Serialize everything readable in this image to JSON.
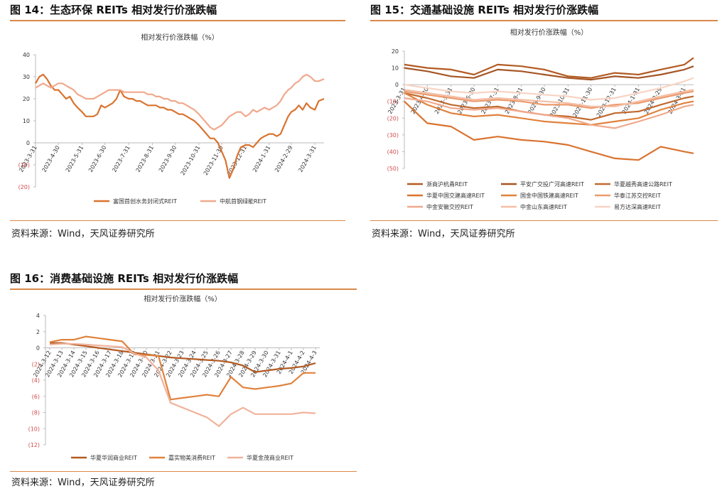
{
  "charts": [
    {
      "heading": "图 14：生态环保 REITs 相对发行价涨跌幅",
      "source": "资料来源：Wind，天风证券研究所",
      "chart_data": {
        "type": "line",
        "title": "相对发行价涨跌幅（%）",
        "ylim": [
          -20,
          40
        ],
        "yticks": [
          -20,
          -10,
          0,
          10,
          20,
          30,
          40
        ],
        "ytick_labels": [
          "(20)",
          "(10)",
          "0",
          "10",
          "20",
          "30",
          "40"
        ],
        "xlim": [
          "2023-03-31",
          "2024-04-12"
        ],
        "xticks": [
          "2023-3-31",
          "2023-4-30",
          "2023-5-31",
          "2023-6-30",
          "2023-7-31",
          "2023-8-31",
          "2023-9-30",
          "2023-10-31",
          "2023-11-30",
          "2023-12-31",
          "2024-1-31",
          "2024-2-29",
          "2024-3-31"
        ],
        "legend_position": "bottom",
        "series": [
          {
            "name": "富国首创水务封闭式REIT",
            "color": "#d9732f",
            "x": [
              "2023-03-31",
              "2023-04-05",
              "2023-04-10",
              "2023-04-15",
              "2023-04-20",
              "2023-04-25",
              "2023-04-30",
              "2023-05-05",
              "2023-05-10",
              "2023-05-15",
              "2023-05-20",
              "2023-05-25",
              "2023-05-31",
              "2023-06-05",
              "2023-06-10",
              "2023-06-15",
              "2023-06-20",
              "2023-06-25",
              "2023-06-30",
              "2023-07-05",
              "2023-07-10",
              "2023-07-15",
              "2023-07-20",
              "2023-07-25",
              "2023-07-31",
              "2023-08-05",
              "2023-08-10",
              "2023-08-15",
              "2023-08-20",
              "2023-08-25",
              "2023-08-31",
              "2023-09-05",
              "2023-09-10",
              "2023-09-15",
              "2023-09-20",
              "2023-09-25",
              "2023-09-30",
              "2023-10-05",
              "2023-10-10",
              "2023-10-15",
              "2023-10-20",
              "2023-10-25",
              "2023-10-31",
              "2023-11-05",
              "2023-11-10",
              "2023-11-15",
              "2023-11-20",
              "2023-11-25",
              "2023-11-30",
              "2023-12-05",
              "2023-12-10",
              "2023-12-15",
              "2023-12-20",
              "2023-12-25",
              "2023-12-31",
              "2024-01-05",
              "2024-01-10",
              "2024-01-15",
              "2024-01-20",
              "2024-01-25",
              "2024-01-31",
              "2024-02-05",
              "2024-02-10",
              "2024-02-15",
              "2024-02-20",
              "2024-02-25",
              "2024-02-29",
              "2024-03-05",
              "2024-03-10",
              "2024-03-15",
              "2024-03-20",
              "2024-03-25",
              "2024-03-31",
              "2024-04-05",
              "2024-04-12"
            ],
            "values": [
              27,
              30,
              31,
              29,
              26,
              24,
              24,
              22,
              20,
              21,
              18,
              16,
              14,
              12,
              12,
              12,
              13,
              17,
              16,
              17,
              18,
              20,
              24,
              21,
              20,
              20,
              19,
              19,
              18,
              17,
              17,
              17,
              16,
              16,
              15,
              15,
              14,
              13,
              13,
              12,
              11,
              10,
              8,
              6,
              4,
              2,
              2,
              0,
              -4,
              -8,
              -16,
              -12,
              -6,
              -2,
              -1,
              -1,
              -2,
              0,
              2,
              3,
              4,
              4,
              3,
              4,
              8,
              12,
              14,
              15,
              17,
              15,
              18,
              16,
              15,
              19,
              20
            ]
          },
          {
            "name": "中航首钢绿能REIT",
            "color": "#f0a98c",
            "x": [
              "2023-03-31",
              "2023-04-05",
              "2023-04-10",
              "2023-04-15",
              "2023-04-20",
              "2023-04-25",
              "2023-04-30",
              "2023-05-05",
              "2023-05-10",
              "2023-05-15",
              "2023-05-20",
              "2023-05-25",
              "2023-05-31",
              "2023-06-05",
              "2023-06-10",
              "2023-06-15",
              "2023-06-20",
              "2023-06-25",
              "2023-06-30",
              "2023-07-05",
              "2023-07-10",
              "2023-07-15",
              "2023-07-20",
              "2023-07-25",
              "2023-07-31",
              "2023-08-05",
              "2023-08-10",
              "2023-08-15",
              "2023-08-20",
              "2023-08-25",
              "2023-08-31",
              "2023-09-05",
              "2023-09-10",
              "2023-09-15",
              "2023-09-20",
              "2023-09-25",
              "2023-09-30",
              "2023-10-05",
              "2023-10-10",
              "2023-10-15",
              "2023-10-20",
              "2023-10-25",
              "2023-10-31",
              "2023-11-05",
              "2023-11-10",
              "2023-11-15",
              "2023-11-20",
              "2023-11-25",
              "2023-11-30",
              "2023-12-05",
              "2023-12-10",
              "2023-12-15",
              "2023-12-20",
              "2023-12-25",
              "2023-12-31",
              "2024-01-05",
              "2024-01-10",
              "2024-01-15",
              "2024-01-20",
              "2024-01-25",
              "2024-01-31",
              "2024-02-05",
              "2024-02-10",
              "2024-02-15",
              "2024-02-20",
              "2024-02-25",
              "2024-02-29",
              "2024-03-05",
              "2024-03-10",
              "2024-03-15",
              "2024-03-20",
              "2024-03-25",
              "2024-03-31",
              "2024-04-05",
              "2024-04-12"
            ],
            "values": [
              25,
              26,
              27,
              26,
              25,
              26,
              27,
              27,
              26,
              25,
              24,
              22,
              21,
              20,
              20,
              20,
              21,
              22,
              23,
              24,
              24,
              24,
              24,
              23,
              23,
              23,
              23,
              23,
              23,
              22,
              22,
              21,
              21,
              20,
              20,
              19,
              19,
              18,
              18,
              17,
              16,
              15,
              13,
              11,
              9,
              7,
              6,
              7,
              8,
              10,
              12,
              13,
              14,
              14,
              12,
              13,
              15,
              14,
              15,
              16,
              15,
              16,
              17,
              19,
              22,
              24,
              25,
              27,
              28,
              30,
              31,
              30,
              28,
              28,
              29
            ]
          }
        ]
      }
    },
    {
      "heading": "图 15：交通基础设施 REITs 相对发行价涨跌幅",
      "source": "资料来源：Wind，天风证券研究所",
      "chart_data": {
        "type": "line",
        "title": "相对发行价涨跌幅（%）",
        "ylim": [
          -50,
          20
        ],
        "yticks": [
          -50,
          -40,
          -30,
          -20,
          -10,
          0,
          10,
          20
        ],
        "ytick_labels": [
          "(50)",
          "(40)",
          "(30)",
          "(20)",
          "(10)",
          "0",
          "10",
          "20"
        ],
        "xlim": [
          "2023-03-31",
          "2024-04-12"
        ],
        "xticks": [
          "2023-3-31",
          "2023-4-30",
          "2023-5-31",
          "2023-6-30",
          "2023-7-31",
          "2023-8-31",
          "2023-9-30",
          "2023-10-31",
          "2023-11-30",
          "2023-12-31",
          "2024-1-31",
          "2024-2-29",
          "2024-3-31"
        ],
        "legend_position": "bottom",
        "series": [
          {
            "name": "浙商沪杭甬REIT",
            "color": "#b35a22",
            "x": [
              "2023-03-31",
              "2023-04-30",
              "2023-05-31",
              "2023-06-30",
              "2023-07-31",
              "2023-08-31",
              "2023-09-30",
              "2023-10-31",
              "2023-11-30",
              "2023-12-31",
              "2024-01-31",
              "2024-02-29",
              "2024-03-31",
              "2024-04-12"
            ],
            "values": [
              12,
              10,
              9,
              6,
              12,
              11,
              9,
              5,
              4,
              7,
              6,
              9,
              12,
              16
            ]
          },
          {
            "name": "平安广交投广河高速REIT",
            "color": "#a55525",
            "x": [
              "2023-03-31",
              "2023-04-30",
              "2023-05-31",
              "2023-06-30",
              "2023-07-31",
              "2023-08-31",
              "2023-09-30",
              "2023-10-31",
              "2023-11-30",
              "2023-12-31",
              "2024-01-31",
              "2024-02-29",
              "2024-03-31",
              "2024-04-12"
            ],
            "values": [
              10,
              8,
              5,
              4,
              9,
              8,
              6,
              4,
              3,
              5,
              4,
              6,
              9,
              11
            ]
          },
          {
            "name": "华夏越秀高速公路REIT",
            "color": "#c06a30",
            "x": [
              "2023-03-31",
              "2023-04-30",
              "2023-05-31",
              "2023-06-30",
              "2023-07-31",
              "2023-08-31",
              "2023-09-30",
              "2023-10-31",
              "2023-11-30",
              "2023-12-31",
              "2024-01-31",
              "2024-02-29",
              "2024-03-31",
              "2024-04-12"
            ],
            "values": [
              -5,
              -8,
              -12,
              -14,
              -13,
              -16,
              -18,
              -19,
              -21,
              -17,
              -16,
              -12,
              -8,
              -7
            ]
          },
          {
            "name": "华夏中国交建高速REIT",
            "color": "#d9732f",
            "x": [
              "2023-03-31",
              "2023-04-30",
              "2023-05-31",
              "2023-06-30",
              "2023-07-31",
              "2023-08-31",
              "2023-09-30",
              "2023-10-31",
              "2023-11-30",
              "2023-12-31",
              "2024-01-31",
              "2024-02-29",
              "2024-03-31",
              "2024-04-12"
            ],
            "values": [
              -10,
              -23,
              -25,
              -33,
              -31,
              -33,
              -34,
              -36,
              -40,
              -44,
              -45,
              -37,
              -40,
              -41
            ]
          },
          {
            "name": "国金中国铁建高速REIT",
            "color": "#e0823e",
            "x": [
              "2023-03-31",
              "2023-04-30",
              "2023-05-31",
              "2023-06-30",
              "2023-07-31",
              "2023-08-31",
              "2023-09-30",
              "2023-10-31",
              "2023-11-30",
              "2023-12-31",
              "2024-01-31",
              "2024-02-29",
              "2024-03-31",
              "2024-04-12"
            ],
            "values": [
              -5,
              -12,
              -17,
              -19,
              -18,
              -20,
              -22,
              -23,
              -24,
              -22,
              -20,
              -15,
              -11,
              -10
            ]
          },
          {
            "name": "华泰江苏交控REIT",
            "color": "#ec9a6c",
            "x": [
              "2023-03-31",
              "2023-04-30",
              "2023-05-31",
              "2023-06-30",
              "2023-07-31",
              "2023-08-31",
              "2023-09-30",
              "2023-10-31",
              "2023-11-30",
              "2023-12-31",
              "2024-01-31",
              "2024-02-29",
              "2024-03-31",
              "2024-04-12"
            ],
            "values": [
              -4,
              -6,
              -8,
              -10,
              -9,
              -10,
              -12,
              -12,
              -14,
              -12,
              -11,
              -8,
              -5,
              -4
            ]
          },
          {
            "name": "中金安徽交控REIT",
            "color": "#f0a98c",
            "x": [
              "2023-03-31",
              "2023-04-30",
              "2023-05-31",
              "2023-06-30",
              "2023-07-31",
              "2023-08-31",
              "2023-09-30",
              "2023-10-31",
              "2023-11-30",
              "2023-12-31",
              "2024-01-31",
              "2024-02-29",
              "2024-03-31",
              "2024-04-12"
            ],
            "values": [
              -8,
              -10,
              -14,
              -15,
              -14,
              -16,
              -18,
              -20,
              -24,
              -26,
              -22,
              -18,
              -13,
              -12
            ]
          },
          {
            "name": "中金山东高速REIT",
            "color": "#f4bfa6",
            "x": [
              "2023-03-31",
              "2023-04-30",
              "2023-05-31",
              "2023-06-30",
              "2023-07-31",
              "2023-08-31",
              "2023-09-30",
              "2023-10-31",
              "2023-11-30",
              "2023-12-31",
              "2024-01-31",
              "2024-02-29",
              "2024-03-31",
              "2024-04-12"
            ],
            "values": [
              -3,
              -5,
              -7,
              -9,
              -8,
              -9,
              -10,
              -11,
              -13,
              -13,
              -10,
              -7,
              -4,
              -3
            ]
          },
          {
            "name": "易方达深高速REIT",
            "color": "#f8d4c4",
            "x": [
              "2023-03-31",
              "2023-04-30",
              "2023-05-31",
              "2023-06-30",
              "2023-07-31",
              "2023-08-31",
              "2023-09-30",
              "2023-10-31",
              "2023-11-30",
              "2023-12-31",
              "2024-01-31",
              "2024-02-29",
              "2024-03-31",
              "2024-04-12"
            ],
            "values": [
              0,
              -2,
              -4,
              -5,
              -4,
              -5,
              -6,
              -7,
              -9,
              -8,
              -5,
              -2,
              2,
              4
            ]
          }
        ]
      }
    },
    {
      "heading": "图 16：消费基础设施 REITs 相对发行价涨跌幅",
      "source": "资料来源：Wind，天风证券研究所",
      "chart_data": {
        "type": "line",
        "title": "相对发行价涨跌幅（%）",
        "ylim": [
          -12,
          4
        ],
        "yticks": [
          -12,
          -10,
          -8,
          -6,
          -4,
          -2,
          0,
          2,
          4
        ],
        "ytick_labels": [
          "(12)",
          "(10)",
          "(8)",
          "(6)",
          "(4)",
          "(2)",
          "0",
          "2",
          "4"
        ],
        "categories": [
          "2024-3-12",
          "2024-3-13",
          "2024-3-14",
          "2024-3-15",
          "2024-3-16",
          "2024-3-17",
          "2024-3-18",
          "2024-3-19",
          "2024-3-20",
          "2024-3-21",
          "2024-3-22",
          "2024-3-23",
          "2024-3-24",
          "2024-3-25",
          "2024-3-26",
          "2024-3-27",
          "2024-3-28",
          "2024-3-29",
          "2024-3-30",
          "2024-3-31",
          "2024-4-1",
          "2024-4-2",
          "2024-4-3"
        ],
        "legend_position": "bottom",
        "series": [
          {
            "name": "华夏华润商业REIT",
            "color": "#b35a22",
            "values": [
              0.6,
              0.6,
              0.4,
              0.2,
              0.0,
              -0.2,
              -0.4,
              -0.6,
              -0.8,
              -1.0,
              -1.2,
              -1.3,
              -1.4,
              -1.5,
              -1.6,
              -1.8,
              -2.2,
              -3.0,
              -2.8,
              -2.6,
              -2.5,
              -2.3,
              -1.9
            ]
          },
          {
            "name": "嘉实物美消费REIT",
            "color": "#e0823e",
            "values": [
              0.7,
              1.0,
              1.0,
              1.4,
              1.2,
              1.0,
              0.8,
              -0.8,
              -0.9,
              -1.0,
              -6.4,
              -6.2,
              -6.0,
              -5.8,
              -6.0,
              -3.6,
              -4.9,
              -5.1,
              -4.9,
              -4.7,
              -4.4,
              -3.1,
              -3.1
            ]
          },
          {
            "name": "华夏金茂商业REIT",
            "color": "#f0b39c",
            "values": [
              0.4,
              0.5,
              0.5,
              0.4,
              0.3,
              0.2,
              0.1,
              -0.7,
              -1.2,
              -2.8,
              -6.8,
              -7.4,
              -8.0,
              -8.6,
              -9.7,
              -8.2,
              -7.4,
              -8.2,
              -8.2,
              -8.2,
              -8.2,
              -8.0,
              -8.1
            ]
          }
        ]
      }
    }
  ]
}
